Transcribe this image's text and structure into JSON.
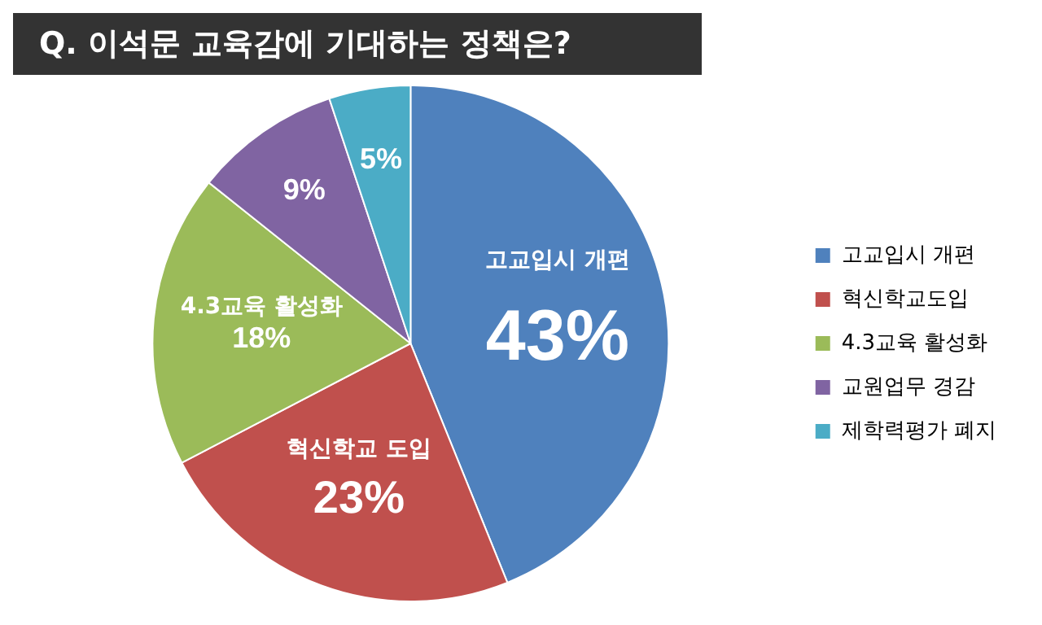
{
  "chart_data": {
    "type": "pie",
    "title": "Q. 이석문 교육감에 기대하는 정책은?",
    "categories": [
      "고교입시 개편",
      "혁신학교도입",
      "4.3교육 활성화",
      "교원업무 경감",
      "제학력평가 폐지"
    ],
    "values": [
      43,
      23,
      18,
      9,
      5
    ],
    "value_labels": [
      "43%",
      "23%",
      "18%",
      "9%",
      "5%"
    ],
    "colors": [
      "#4f81bd",
      "#c0504d",
      "#9bbb59",
      "#8064a2",
      "#4bacc6"
    ],
    "annotations": [
      "고교입시 개편",
      "혁신학교 도입",
      "4.3교육 활성화"
    ],
    "legend": "right"
  }
}
